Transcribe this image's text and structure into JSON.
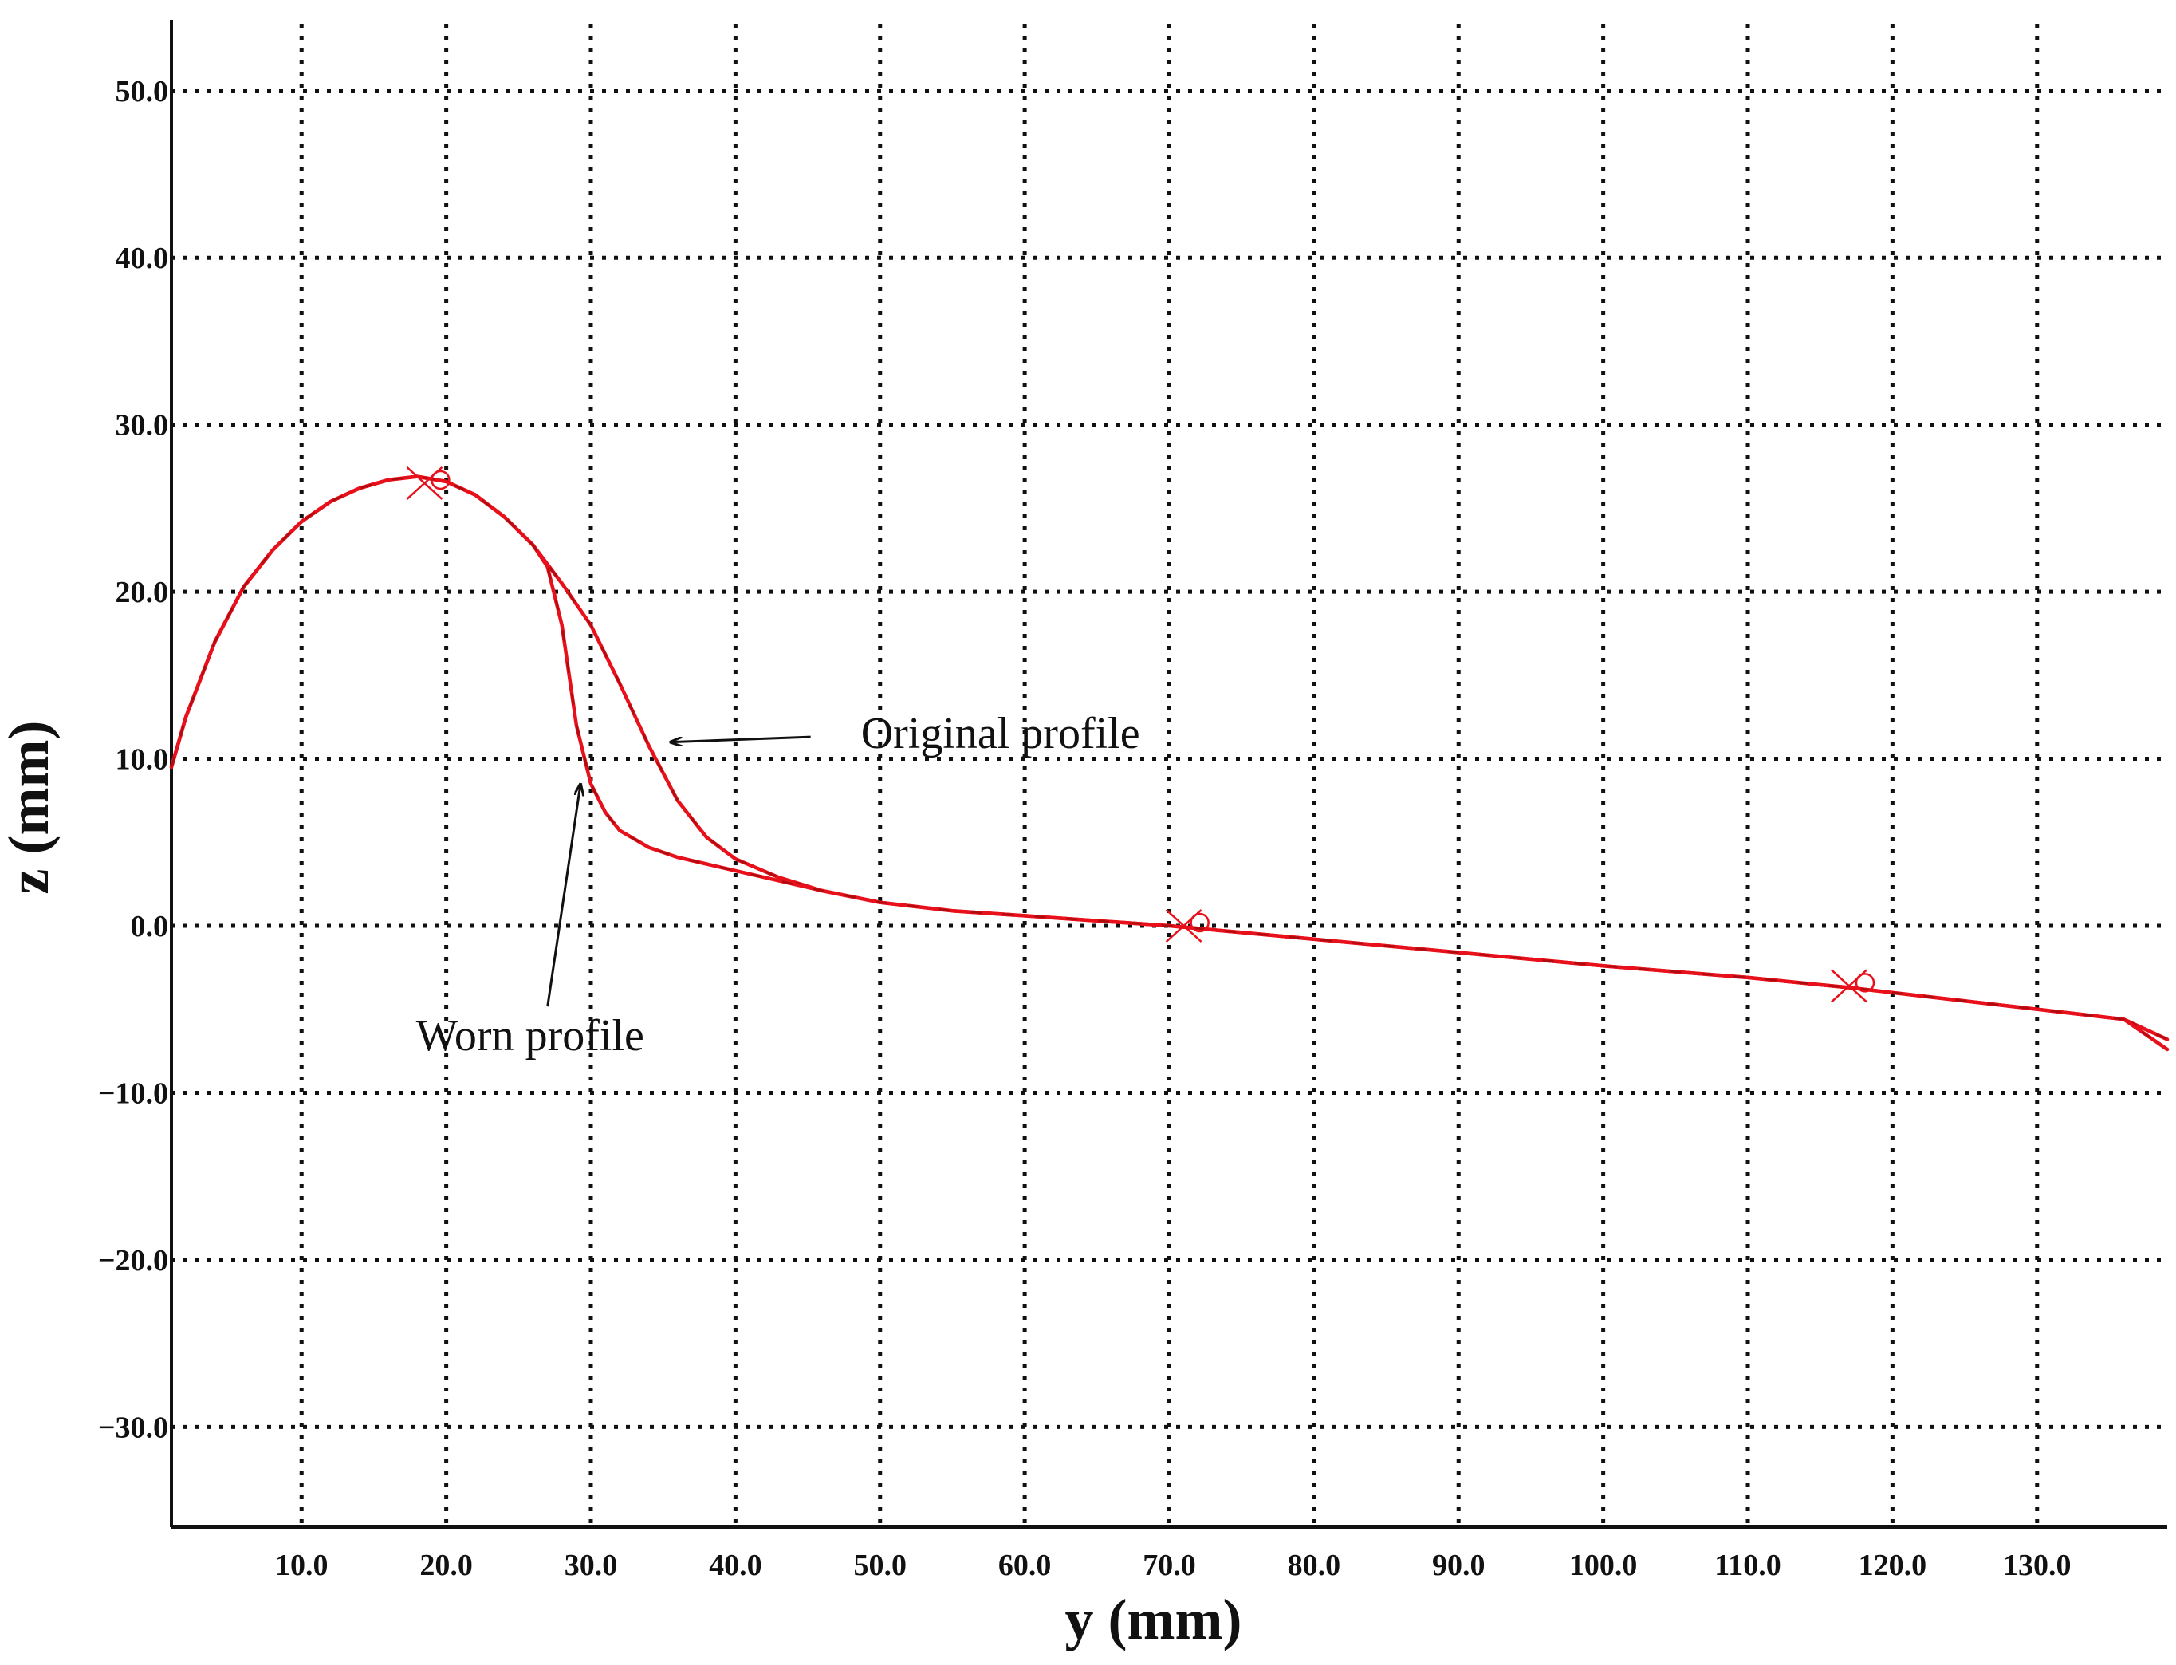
{
  "chart_data": {
    "type": "line",
    "title": "",
    "xlabel": "y (mm)",
    "ylabel": "z (mm)",
    "xlim": [
      1.0,
      139.0
    ],
    "ylim": [
      -36.0,
      54.0
    ],
    "grid": true,
    "x_ticks": [
      10,
      20,
      30,
      40,
      50,
      60,
      70,
      80,
      90,
      100,
      110,
      120,
      130
    ],
    "x_tick_labels": [
      "10.0",
      "20.0",
      "30.0",
      "40.0",
      "50.0",
      "60.0",
      "70.0",
      "80.0",
      "90.0",
      "100.0",
      "110.0",
      "120.0",
      "130.0"
    ],
    "y_ticks": [
      50,
      40,
      30,
      20,
      10,
      0,
      -10,
      -20,
      -30
    ],
    "y_tick_labels": [
      "50.0",
      "40.0",
      "30.0",
      "20.0",
      "10.0",
      "0.0",
      "−10.0",
      "−20.0",
      "−30.0"
    ],
    "colors": {
      "line": "#e8101a",
      "dash": "#7a0a0a",
      "grid": "#111111",
      "axis": "#111111",
      "annotation": "#111111"
    },
    "series": [
      {
        "name": "Original profile",
        "x": [
          1.0,
          2.0,
          4.0,
          6.0,
          8.0,
          10.0,
          12.0,
          14.0,
          16.0,
          18.0,
          20.0,
          22.0,
          24.0,
          26.0,
          28.0,
          30.0,
          32.0,
          34.0,
          36.0,
          38.0,
          40.0,
          43.0,
          46.0,
          50.0,
          55.0,
          60.0,
          65.0,
          70.0,
          75.0,
          80.0,
          90.0,
          100.0,
          110.0,
          117.0,
          120.0,
          130.0,
          136.0,
          139.0
        ],
        "y": [
          9.5,
          12.5,
          17.0,
          20.3,
          22.5,
          24.2,
          25.4,
          26.2,
          26.7,
          26.9,
          26.6,
          25.8,
          24.5,
          22.8,
          20.5,
          18.0,
          14.5,
          10.8,
          7.5,
          5.3,
          4.0,
          2.9,
          2.1,
          1.4,
          0.9,
          0.6,
          0.3,
          0.0,
          -0.4,
          -0.8,
          -1.6,
          -2.4,
          -3.1,
          -3.7,
          -4.0,
          -5.0,
          -5.6,
          -6.8
        ]
      },
      {
        "name": "Worn profile",
        "x": [
          1.0,
          2.0,
          4.0,
          6.0,
          8.0,
          10.0,
          12.0,
          14.0,
          16.0,
          18.0,
          20.0,
          22.0,
          24.0,
          26.0,
          27.0,
          28.0,
          29.0,
          30.0,
          31.0,
          32.0,
          34.0,
          36.0,
          38.0,
          40.0,
          43.0,
          46.0,
          50.0,
          55.0,
          60.0,
          65.0,
          70.0,
          75.0,
          80.0,
          90.0,
          100.0,
          110.0,
          117.0,
          120.0,
          130.0,
          136.0,
          139.0
        ],
        "y": [
          9.5,
          12.5,
          17.0,
          20.3,
          22.5,
          24.2,
          25.4,
          26.2,
          26.7,
          26.9,
          26.6,
          25.8,
          24.5,
          22.8,
          21.5,
          18.0,
          12.0,
          8.5,
          6.8,
          5.7,
          4.7,
          4.1,
          3.7,
          3.3,
          2.7,
          2.1,
          1.4,
          0.9,
          0.6,
          0.3,
          0.0,
          -0.4,
          -0.8,
          -1.6,
          -2.4,
          -3.1,
          -3.7,
          -4.0,
          -5.0,
          -5.6,
          -7.4
        ]
      }
    ],
    "annotations": [
      {
        "text": "Original profile",
        "x": 35,
        "y": 11,
        "text_x": 71,
        "text_y": 11.5
      },
      {
        "text": "Worn profile",
        "x": 29.5,
        "y": 7.5,
        "text_x": 28,
        "text_y": -6.5
      }
    ],
    "markers": [
      {
        "x": 18.5,
        "y": 26.5,
        "symbol": "✕"
      },
      {
        "x": 71.0,
        "y": 0.0,
        "symbol": "✕"
      },
      {
        "x": 117.0,
        "y": -3.6,
        "symbol": "✕"
      }
    ]
  }
}
